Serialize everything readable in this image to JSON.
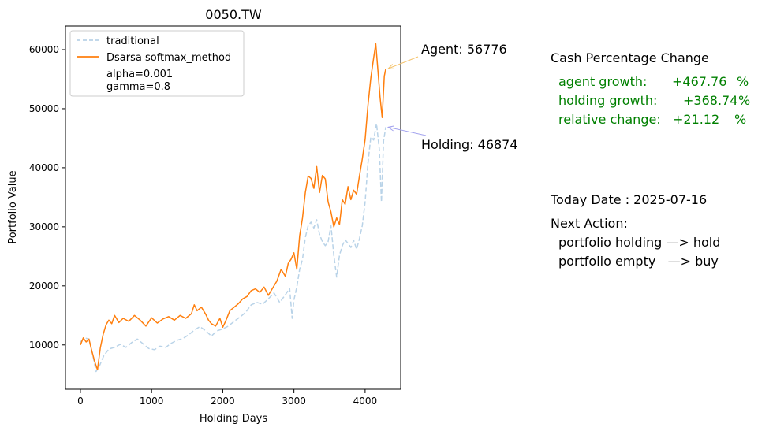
{
  "chart_data": {
    "type": "line",
    "title": "0050.TW",
    "xlabel": "Holding Days",
    "ylabel": "Portfolio Value",
    "xlim": [
      -210,
      4500
    ],
    "ylim": [
      2500,
      64000
    ],
    "xticks": [
      0,
      1000,
      2000,
      3000,
      4000
    ],
    "yticks": [
      10000,
      20000,
      30000,
      40000,
      50000,
      60000
    ],
    "xtick_labels": [
      "0",
      "1000",
      "2000",
      "3000",
      "4000"
    ],
    "ytick_labels": [
      "10000",
      "20000",
      "30000",
      "40000",
      "50000",
      "60000"
    ],
    "grid": false,
    "legend_position": "top-left",
    "legend": {
      "items": [
        "traditional",
        "Dsarsa softmax_method"
      ],
      "extra_lines": [
        "alpha=0.001",
        "gamma=0.8"
      ]
    },
    "series": [
      {
        "name": "traditional",
        "color": "#b9d3e8",
        "style": "dashed",
        "x": [
          0,
          60,
          120,
          170,
          220,
          270,
          330,
          400,
          480,
          560,
          640,
          720,
          800,
          880,
          960,
          1040,
          1120,
          1200,
          1280,
          1360,
          1440,
          1520,
          1600,
          1680,
          1760,
          1840,
          1920,
          2000,
          2080,
          2160,
          2240,
          2320,
          2400,
          2480,
          2560,
          2640,
          2720,
          2800,
          2880,
          2940,
          2975,
          3000,
          3040,
          3080,
          3120,
          3160,
          3200,
          3240,
          3280,
          3320,
          3360,
          3400,
          3440,
          3480,
          3520,
          3560,
          3600,
          3640,
          3680,
          3720,
          3760,
          3800,
          3840,
          3880,
          3920,
          3960,
          4000,
          4040,
          4080,
          4120,
          4160,
          4200,
          4230,
          4260,
          4290
        ],
        "values": [
          10500,
          11200,
          11000,
          8500,
          5500,
          6500,
          8200,
          9300,
          9600,
          10100,
          9600,
          10400,
          11000,
          10200,
          9400,
          9200,
          9800,
          9600,
          10300,
          10800,
          11100,
          11700,
          12500,
          13100,
          12400,
          11500,
          12400,
          12700,
          13200,
          14000,
          14700,
          15500,
          16800,
          17200,
          16900,
          17800,
          18800,
          17200,
          18500,
          19600,
          14500,
          17600,
          19800,
          22800,
          24500,
          28200,
          30200,
          30800,
          29800,
          31200,
          28700,
          27500,
          26800,
          27500,
          30200,
          25200,
          21500,
          25200,
          26800,
          27800,
          27200,
          26500,
          27700,
          26200,
          28000,
          30200,
          34200,
          40800,
          45200,
          44700,
          47500,
          43100,
          34200,
          44600,
          46874
        ]
      },
      {
        "name": "Dsarsa softmax_method",
        "color": "#ff7f0e",
        "style": "solid",
        "x": [
          0,
          40,
          80,
          120,
          160,
          200,
          240,
          280,
          320,
          360,
          400,
          440,
          480,
          540,
          600,
          680,
          760,
          840,
          920,
          1000,
          1080,
          1160,
          1240,
          1320,
          1400,
          1480,
          1560,
          1600,
          1640,
          1700,
          1760,
          1800,
          1840,
          1900,
          1960,
          2000,
          2040,
          2100,
          2160,
          2220,
          2280,
          2340,
          2400,
          2460,
          2520,
          2580,
          2640,
          2700,
          2760,
          2820,
          2880,
          2920,
          2960,
          3000,
          3040,
          3080,
          3120,
          3160,
          3200,
          3240,
          3280,
          3320,
          3360,
          3400,
          3440,
          3480,
          3520,
          3560,
          3600,
          3640,
          3680,
          3720,
          3760,
          3800,
          3840,
          3880,
          3920,
          3960,
          4000,
          4040,
          4080,
          4120,
          4150,
          4180,
          4210,
          4240,
          4270,
          4290
        ],
        "values": [
          10000,
          11200,
          10500,
          11000,
          9000,
          7200,
          5800,
          9500,
          11800,
          13400,
          14200,
          13600,
          15000,
          13800,
          14500,
          14000,
          15000,
          14200,
          13200,
          14600,
          13700,
          14400,
          14800,
          14200,
          15000,
          14500,
          15300,
          16800,
          15800,
          16400,
          15200,
          14200,
          13600,
          13200,
          14500,
          13000,
          14000,
          15800,
          16400,
          17000,
          17800,
          18200,
          19200,
          19500,
          18900,
          19800,
          18400,
          19600,
          20800,
          22800,
          21600,
          23800,
          24500,
          25600,
          22800,
          28500,
          31500,
          35800,
          38600,
          38200,
          36500,
          40200,
          35800,
          38700,
          38100,
          34200,
          32500,
          30000,
          31500,
          30400,
          34600,
          33800,
          36800,
          34600,
          36200,
          35500,
          38600,
          41500,
          44800,
          50600,
          55200,
          58600,
          61000,
          56500,
          52000,
          48500,
          55500,
          56776
        ]
      }
    ],
    "annotations": [
      {
        "text": "Agent: 56776",
        "x": 4290,
        "y": 56776,
        "arrow_color": "#f5c36b"
      },
      {
        "text": "Holding: 46874",
        "x": 4290,
        "y": 46874,
        "arrow_color": "#a3a3ee"
      }
    ]
  },
  "side_panel": {
    "heading": "Cash Percentage Change",
    "agent_growth_label": "agent growth:",
    "agent_growth_value": "+467.76",
    "holding_growth_label": "holding growth:",
    "holding_growth_value": "+368.74",
    "relative_change_label": "relative change:",
    "relative_change_value": "+21.12",
    "percent_sign": "%",
    "growth_color": "#008000",
    "today_date": "Today Date : 2025-07-16",
    "next_action_label": "Next Action:",
    "holding_action": "portfolio holding —> hold",
    "empty_action": "portfolio empty   —> buy"
  }
}
